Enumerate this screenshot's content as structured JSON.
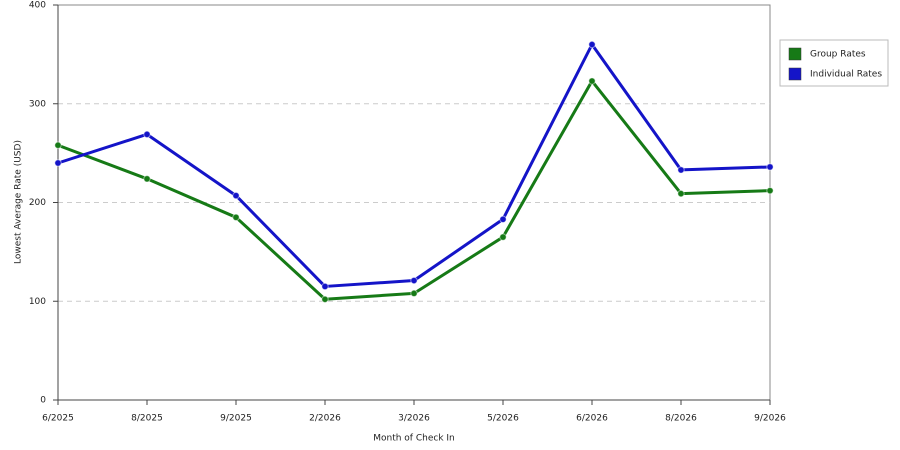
{
  "chart_data": {
    "type": "line",
    "x_label": "Month of Check In",
    "y_label": "Lowest Average Rate (USD)",
    "categories": [
      "6/2025",
      "8/2025",
      "9/2025",
      "2/2026",
      "3/2026",
      "5/2026",
      "6/2026",
      "8/2026",
      "9/2026"
    ],
    "series": [
      {
        "name": "Group Rates",
        "color": "#167a16",
        "values": [
          258,
          224,
          185,
          102,
          108,
          165,
          323,
          209,
          212
        ]
      },
      {
        "name": "Individual Rates",
        "color": "#1414c8",
        "values": [
          240,
          269,
          207,
          115,
          121,
          183,
          360,
          233,
          236
        ]
      }
    ],
    "ylim": [
      0,
      400
    ],
    "yticks": [
      0,
      100,
      200,
      300,
      400
    ],
    "grid": true,
    "legend": "right"
  }
}
